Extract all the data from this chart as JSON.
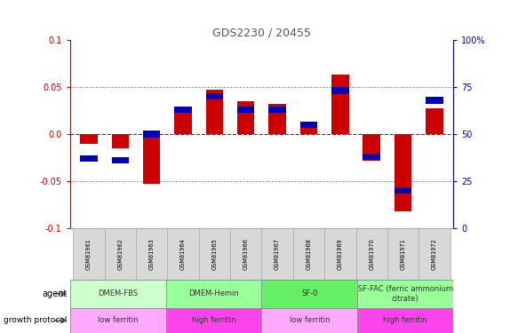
{
  "title": "GDS2230 / 20455",
  "samples": [
    "GSM81961",
    "GSM81962",
    "GSM81963",
    "GSM81964",
    "GSM81965",
    "GSM81966",
    "GSM81967",
    "GSM81968",
    "GSM81969",
    "GSM81970",
    "GSM81971",
    "GSM81972"
  ],
  "log10_ratio": [
    -0.01,
    -0.015,
    -0.053,
    0.025,
    0.047,
    0.035,
    0.032,
    0.012,
    0.063,
    -0.028,
    -0.082,
    0.027
  ],
  "percentile_rank": [
    37,
    36,
    50,
    63,
    70,
    63,
    63,
    55,
    73,
    38,
    20,
    68
  ],
  "ylim": [
    -0.1,
    0.1
  ],
  "yticks_left": [
    -0.1,
    -0.05,
    0.0,
    0.05,
    0.1
  ],
  "yticks_right": [
    0,
    25,
    50,
    75,
    100
  ],
  "agent_groups": [
    {
      "label": "DMEM-FBS",
      "start": 0,
      "end": 3,
      "color": "#ccffcc"
    },
    {
      "label": "DMEM-Hemin",
      "start": 3,
      "end": 6,
      "color": "#99ff99"
    },
    {
      "label": "SF-0",
      "start": 6,
      "end": 9,
      "color": "#66ee66"
    },
    {
      "label": "SF-FAC (ferric ammonium\ncitrate)",
      "start": 9,
      "end": 12,
      "color": "#99ff99"
    }
  ],
  "growth_groups": [
    {
      "label": "low ferritin",
      "start": 0,
      "end": 3,
      "color": "#ffaaff"
    },
    {
      "label": "high ferritin",
      "start": 3,
      "end": 6,
      "color": "#ff44ee"
    },
    {
      "label": "low ferritin",
      "start": 6,
      "end": 9,
      "color": "#ffaaff"
    },
    {
      "label": "high ferritin",
      "start": 9,
      "end": 12,
      "color": "#ff44ee"
    }
  ],
  "bar_color_red": "#cc0000",
  "bar_color_blue": "#0000bb",
  "title_color": "#555555",
  "left_axis_color": "#cc0000",
  "right_axis_color": "#0000bb",
  "zero_line_color": "#cc0000",
  "dot_line_color": "#555555",
  "label_bg_color": "#d8d8d8",
  "label_border_color": "#aaaaaa"
}
